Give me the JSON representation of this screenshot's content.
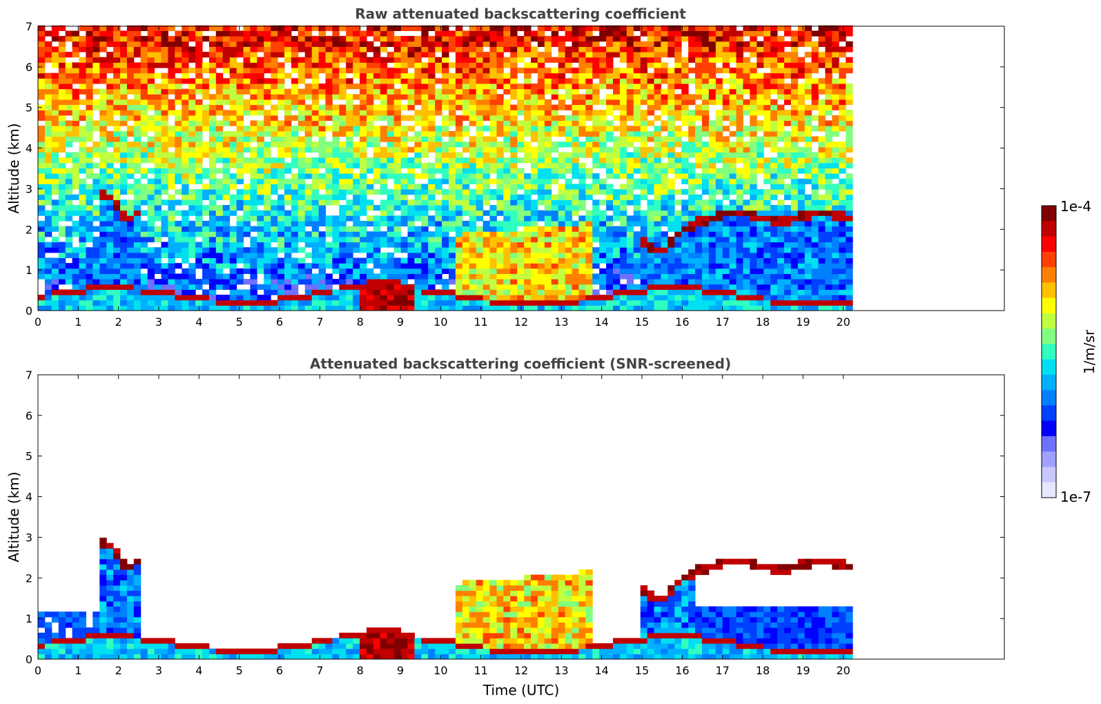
{
  "chart_data": [
    {
      "type": "heatmap",
      "title": "Raw attenuated backscattering coefficient",
      "xlabel": "",
      "ylabel": "Altitude (km)",
      "xlim": [
        0,
        24
      ],
      "ylim": [
        0,
        7
      ],
      "x_ticks": [
        "0",
        "1",
        "2",
        "3",
        "4",
        "5",
        "6",
        "7",
        "8",
        "9",
        "10",
        "11",
        "12",
        "13",
        "14",
        "15",
        "16",
        "17",
        "18",
        "19",
        "20"
      ],
      "y_ticks": [
        "0",
        "1",
        "2",
        "3",
        "4",
        "5",
        "6",
        "7"
      ],
      "data_extent_hours": [
        0,
        20.15
      ],
      "features": [
        {
          "name": "boundary layer",
          "x_range": [
            0,
            20.15
          ],
          "top_km": 0.4
        },
        {
          "name": "cloud layer",
          "x_range": [
            10.4,
            13.4
          ],
          "alt_km": [
            0,
            2.3
          ]
        },
        {
          "name": "cloud layer",
          "x_range": [
            16.3,
            20.15
          ],
          "alt_km": [
            2.2,
            2.5
          ]
        },
        {
          "name": "intense signal",
          "x_range": [
            7.9,
            9.2
          ],
          "alt_km": [
            0,
            0.8
          ]
        }
      ]
    },
    {
      "type": "heatmap",
      "title": "Attenuated backscattering coefficient (SNR-screened)",
      "xlabel": "Time (UTC)",
      "ylabel": "Altitude (km)",
      "xlim": [
        0,
        24
      ],
      "ylim": [
        0,
        7
      ],
      "x_ticks": [
        "0",
        "1",
        "2",
        "3",
        "4",
        "5",
        "6",
        "7",
        "8",
        "9",
        "10",
        "11",
        "12",
        "13",
        "14",
        "15",
        "16",
        "17",
        "18",
        "19",
        "20"
      ],
      "y_ticks": [
        "0",
        "1",
        "2",
        "3",
        "4",
        "5",
        "6",
        "7"
      ],
      "data_extent_hours": [
        0,
        20.15
      ]
    }
  ],
  "colorbar": {
    "label": "1/m/sr",
    "max_label": "1e-4",
    "min_label": "1e-7",
    "colors": [
      "#e6e6ff",
      "#c8c8ff",
      "#a0a0ff",
      "#7070ff",
      "#0000ff",
      "#0040ff",
      "#0080ff",
      "#00b0ff",
      "#00e0f0",
      "#30ffc0",
      "#80ff80",
      "#c0ff40",
      "#ffff00",
      "#ffc000",
      "#ff8000",
      "#ff4000",
      "#ff0000",
      "#c00000",
      "#800000"
    ]
  }
}
